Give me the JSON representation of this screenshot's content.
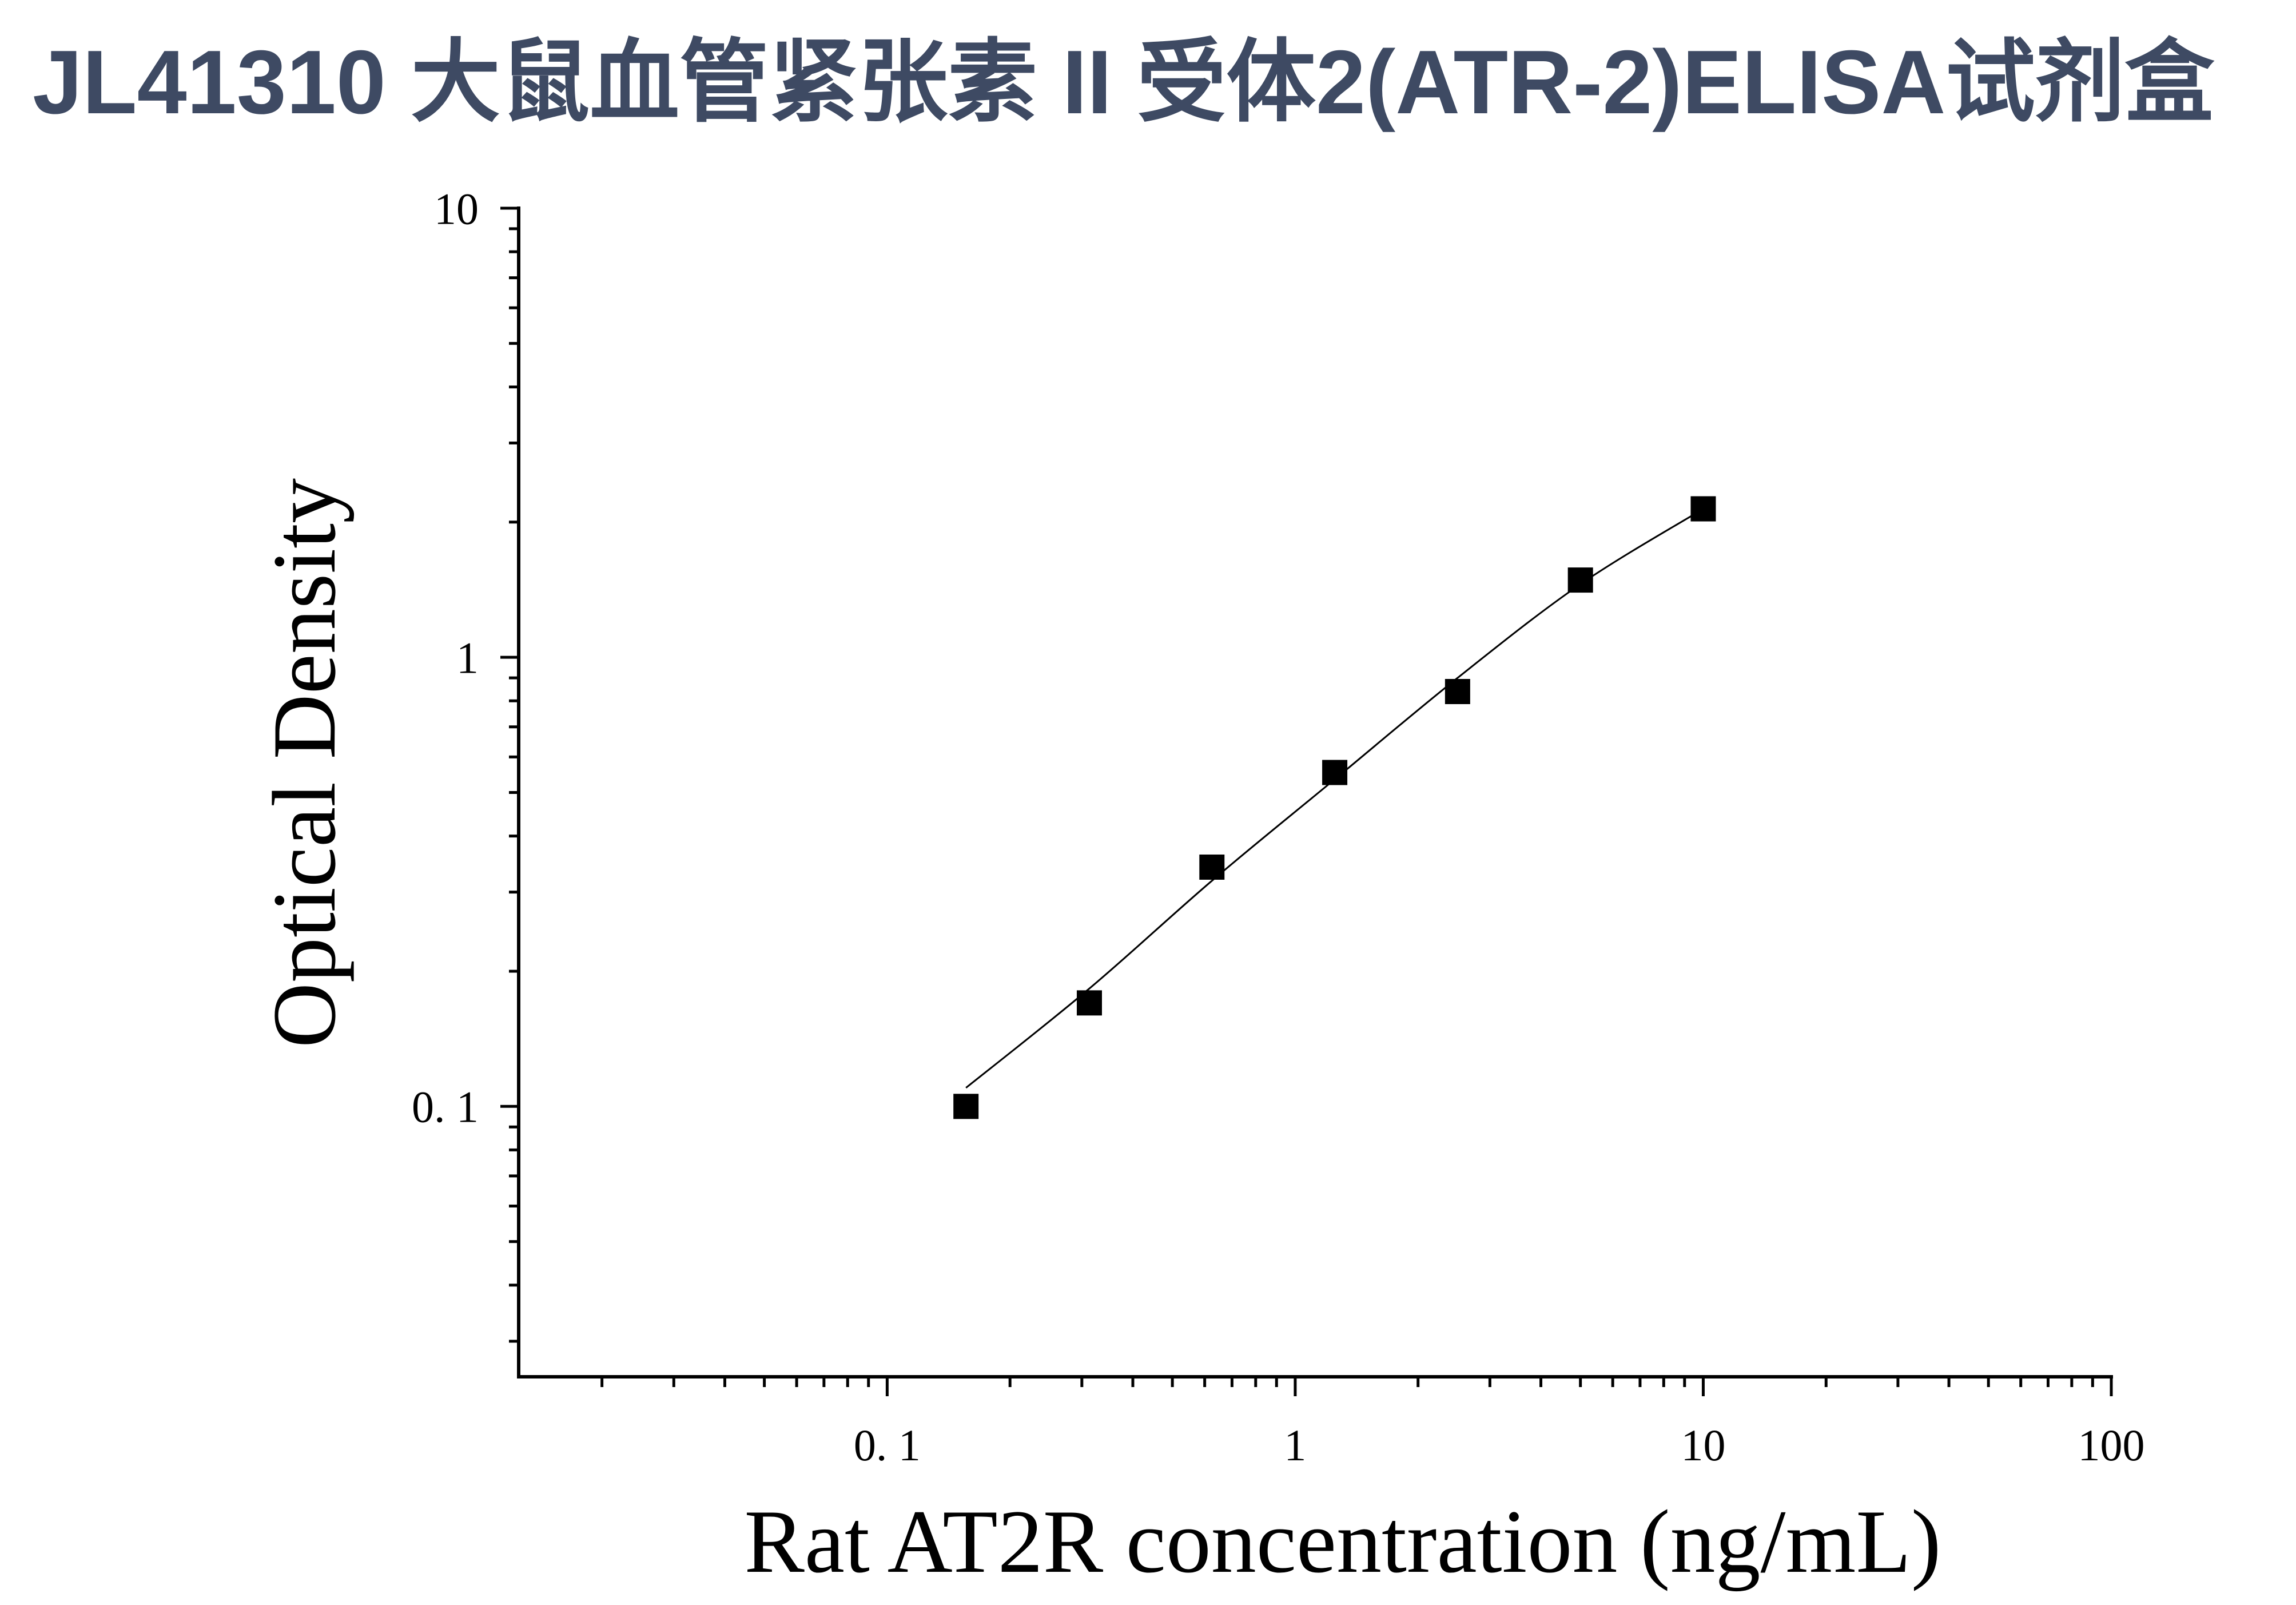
{
  "colors": {
    "title": "#3e4a63",
    "marks": "#000000"
  },
  "chart_data": {
    "type": "scatter",
    "title": "JL41310 大鼠血管紧张素 II 受体2(ATR-2)ELISA试剂盒",
    "xlabel": "Rat AT2R concentration (ng/mL)",
    "ylabel": "Optical Density",
    "xscale": "log",
    "yscale": "log",
    "xlim": [
      0.0125,
      100
    ],
    "ylim": [
      0.025,
      10
    ],
    "xticks": [
      {
        "value": 0.1,
        "label": "0. 1"
      },
      {
        "value": 1,
        "label": "1"
      },
      {
        "value": 10,
        "label": "10"
      },
      {
        "value": 100,
        "label": "100"
      }
    ],
    "yticks": [
      {
        "value": 0.1,
        "label": "0. 1"
      },
      {
        "value": 1,
        "label": "1"
      },
      {
        "value": 10,
        "label": "10"
      }
    ],
    "minor_ticks": true,
    "grid": false,
    "legend": false,
    "series": [
      {
        "type": "line",
        "color": "#000000",
        "x": [
          0.156,
          0.313,
          0.625,
          1.25,
          2.5,
          5,
          10
        ],
        "y": [
          0.11,
          0.183,
          0.318,
          0.535,
          0.9,
          1.455,
          2.14
        ]
      },
      {
        "type": "scatter",
        "marker": "square",
        "color": "#000000",
        "x": [
          0.156,
          0.313,
          0.625,
          1.25,
          2.5,
          5,
          10
        ],
        "y": [
          0.1,
          0.17,
          0.341,
          0.554,
          0.839,
          1.486,
          2.141
        ]
      }
    ]
  }
}
